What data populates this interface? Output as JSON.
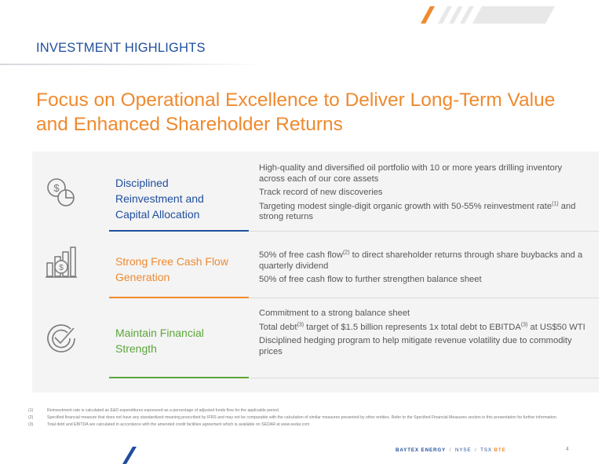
{
  "header": {
    "section_title": "INVESTMENT HIGHLIGHTS"
  },
  "main": {
    "title": "Focus on Operational Excellence to Deliver Long-Term Value and Enhanced Shareholder Returns"
  },
  "highlights": [
    {
      "title": "Disciplined Reinvestment and Capital Allocation",
      "icon": "money-pie-chart-icon",
      "color": "#1f4e9c",
      "bullets": {
        "b1": "High-quality and diversified oil portfolio with 10 or more years drilling inventory across each of our core assets",
        "b2": "Track record of new discoveries",
        "b3_pre": "Targeting modest single-digit organic growth with 50-55% reinvestment rate",
        "b3_sup": "(1)",
        "b3_post": "  and strong returns"
      }
    },
    {
      "title": "Strong Free Cash Flow Generation",
      "icon": "cash-bar-chart-icon",
      "color": "#ef8a2f",
      "bullets": {
        "b1_pre": "50% of free cash flow",
        "b1_sup": "(2)",
        "b1_post": " to direct shareholder returns through share buybacks and a quarterly dividend",
        "b2": "50% of free cash flow to further strengthen balance sheet"
      }
    },
    {
      "title": "Maintain Financial Strength",
      "icon": "check-circle-icon",
      "color": "#5ca63a",
      "bullets": {
        "b1": "Commitment to a strong balance sheet",
        "b2_pre": "Total debt",
        "b2_sup1": "(3)",
        "b2_mid": "  target of $1.5 billion represents 1x total debt to EBITDA",
        "b2_sup2": "(3)",
        "b2_post": "  at US$50 WTI",
        "b3": "Disciplined hedging program to help mitigate revenue volatility due to commodity prices"
      }
    }
  ],
  "footnotes": [
    {
      "num": "(1)",
      "text": "Reinvestment rate is calculated as E&D expenditures expressed as a percentage of adjusted funds flow for the applicable period."
    },
    {
      "num": "(2)",
      "text": "Specified financial measure that does not have any standardized meaning prescribed by IFRS and may not be comparable with the calculation of similar measures presented by other entities. Refer to the Specified Financial Measures section in this presentation for further information."
    },
    {
      "num": "(3)",
      "text": "Total debt and EBITDA are calculated in accordance with the amended credit facilities agreement which is available on SEDAR at www.sedar.com"
    }
  ],
  "footer": {
    "company": "BAYTEX ENERGY",
    "sep": "/",
    "exchange1": "NYSE",
    "exchange2": "TSX",
    "ticker": "BTE",
    "page": "4"
  },
  "colors": {
    "navy": "#1f4e9c",
    "orange": "#ef8a2f",
    "green": "#5ca63a"
  }
}
